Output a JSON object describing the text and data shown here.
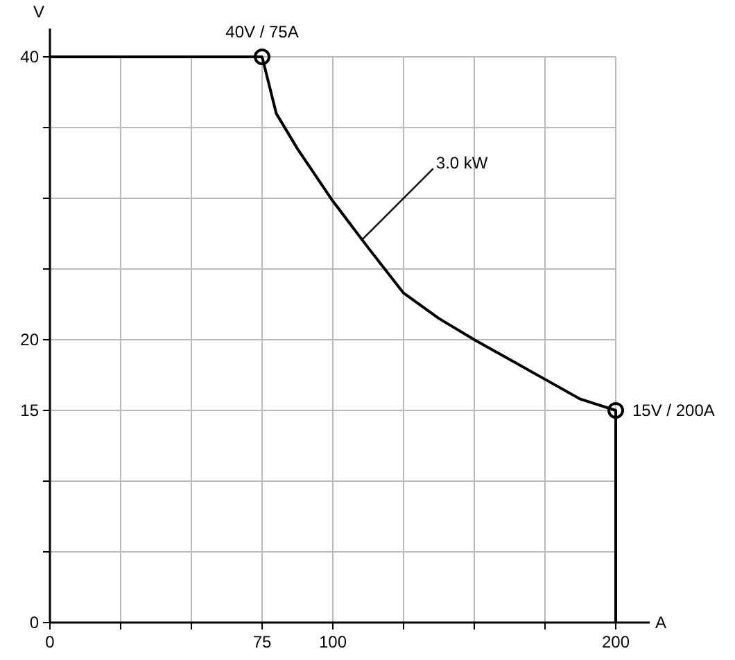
{
  "chart_data": {
    "type": "line",
    "xlabel": "A",
    "ylabel": "V",
    "xlim": [
      0,
      212
    ],
    "ylim": [
      0,
      42
    ],
    "xticks": [
      0,
      {
        "value": 25,
        "label": null
      },
      {
        "value": 50,
        "label": null
      },
      75,
      100,
      {
        "value": 125,
        "label": null
      },
      {
        "value": 150,
        "label": null
      },
      {
        "value": 175,
        "label": null
      },
      200
    ],
    "yticks": [
      0,
      {
        "value": 5,
        "label": null
      },
      {
        "value": 10,
        "label": null
      },
      15,
      20,
      {
        "value": 25,
        "label": null
      },
      {
        "value": 30,
        "label": null
      },
      {
        "value": 35,
        "label": null
      },
      40
    ],
    "grid": true,
    "series": [
      {
        "color": "#000000",
        "x": [
          0,
          75,
          80,
          87.5,
          100,
          112.5,
          125,
          137.5,
          150,
          162.5,
          175,
          187.5,
          200,
          200
        ],
        "values": [
          40,
          40,
          36,
          33.5,
          29.8,
          26.5,
          23.3,
          21.5,
          20,
          18.6,
          17.2,
          15.8,
          15,
          0
        ]
      },
      {
        "type": "scatter",
        "marker": "circle",
        "color": "#000000",
        "x": [
          75,
          200
        ],
        "values": [
          40,
          15
        ]
      }
    ],
    "annotations": [
      {
        "text": "40V / 75A",
        "x": 75,
        "y": 40
      },
      {
        "text": "15V / 200A",
        "x": 200,
        "y": 15
      },
      {
        "text": "3.0 kW",
        "x": 110,
        "y": 27
      }
    ]
  }
}
